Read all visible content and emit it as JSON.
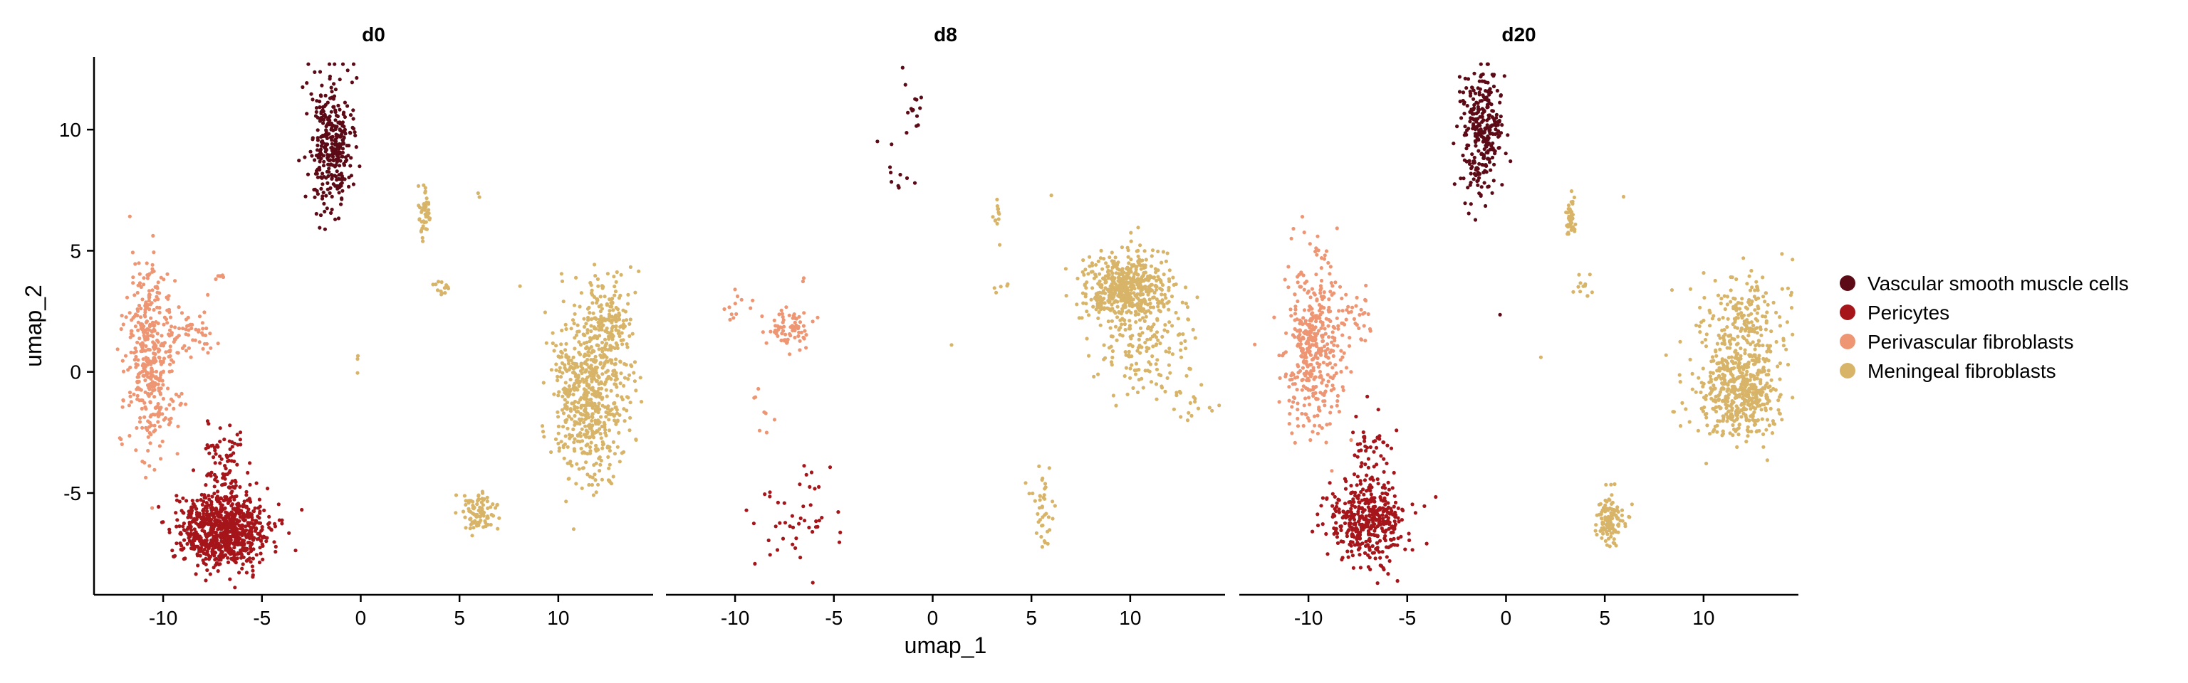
{
  "chart_data": {
    "type": "scatter",
    "xlabel": "umap_1",
    "ylabel": "umap_2",
    "xlim": [
      -13.5,
      14.8
    ],
    "ylim": [
      -9.2,
      13.0
    ],
    "xticks": [
      -10,
      -5,
      0,
      5,
      10
    ],
    "yticks": [
      -5,
      0,
      5,
      10
    ],
    "grid": false,
    "legend_position": "right",
    "series": [
      {
        "name": "Vascular smooth muscle cells",
        "color": "#5C0A16"
      },
      {
        "name": "Pericytes",
        "color": "#A5151A"
      },
      {
        "name": "Perivascular fibroblasts",
        "color": "#EE9673"
      },
      {
        "name": "Meningeal fibroblasts",
        "color": "#D8B468"
      }
    ],
    "panels": [
      {
        "title": "d0",
        "clusters": [
          {
            "series": 0,
            "n": 340,
            "cx": -1.4,
            "cy": 9.3,
            "sx": 0.55,
            "sy": 1.35
          },
          {
            "series": 2,
            "n": 420,
            "cx": -10.6,
            "cy": 0.6,
            "sx": 0.65,
            "sy": 1.9
          },
          {
            "series": 2,
            "n": 40,
            "cx": -8.4,
            "cy": 1.5,
            "sx": 0.5,
            "sy": 0.6
          },
          {
            "series": 2,
            "n": 6,
            "cx": -7.1,
            "cy": 3.9,
            "sx": 0.2,
            "sy": 0.1
          },
          {
            "series": 1,
            "n": 820,
            "cx": -7.0,
            "cy": -6.6,
            "sx": 1.1,
            "sy": 0.75
          },
          {
            "series": 1,
            "n": 90,
            "cx": -6.8,
            "cy": -3.9,
            "sx": 0.6,
            "sy": 0.8
          },
          {
            "series": 3,
            "n": 45,
            "cx": 3.2,
            "cy": 6.6,
            "sx": 0.15,
            "sy": 0.5
          },
          {
            "series": 3,
            "n": 14,
            "cx": 4.1,
            "cy": 3.4,
            "sx": 0.4,
            "sy": 0.2
          },
          {
            "series": 3,
            "n": 2,
            "cx": 5.9,
            "cy": 7.3,
            "sx": 0.1,
            "sy": 0.1
          },
          {
            "series": 3,
            "n": 3,
            "cx": 0.1,
            "cy": 0.4,
            "sx": 0.3,
            "sy": 0.4
          },
          {
            "series": 3,
            "n": 620,
            "cx": 11.6,
            "cy": -0.8,
            "sx": 1.0,
            "sy": 1.7
          },
          {
            "series": 3,
            "n": 140,
            "cx": 12.6,
            "cy": 2.2,
            "sx": 0.6,
            "sy": 0.9
          },
          {
            "series": 3,
            "n": 90,
            "cx": 6.0,
            "cy": -5.8,
            "sx": 0.45,
            "sy": 0.4
          }
        ]
      },
      {
        "title": "d8",
        "clusters": [
          {
            "series": 0,
            "n": 14,
            "cx": -1.0,
            "cy": 11.0,
            "sx": 0.25,
            "sy": 0.6
          },
          {
            "series": 0,
            "n": 10,
            "cx": -1.6,
            "cy": 8.0,
            "sx": 0.3,
            "sy": 0.6
          },
          {
            "series": 0,
            "n": 1,
            "cx": -2.8,
            "cy": 9.5,
            "sx": 0.05,
            "sy": 0.05
          },
          {
            "series": 2,
            "n": 70,
            "cx": -7.2,
            "cy": 1.7,
            "sx": 0.5,
            "sy": 0.4
          },
          {
            "series": 2,
            "n": 14,
            "cx": -9.2,
            "cy": 2.6,
            "sx": 0.6,
            "sy": 0.5
          },
          {
            "series": 2,
            "n": 8,
            "cx": -9.0,
            "cy": -1.5,
            "sx": 0.5,
            "sy": 1.0
          },
          {
            "series": 2,
            "n": 2,
            "cx": -6.6,
            "cy": 3.9,
            "sx": 0.4,
            "sy": 0.1
          },
          {
            "series": 1,
            "n": 40,
            "cx": -7.0,
            "cy": -6.3,
            "sx": 1.0,
            "sy": 0.8
          },
          {
            "series": 1,
            "n": 6,
            "cx": -6.0,
            "cy": -4.2,
            "sx": 0.4,
            "sy": 0.5
          },
          {
            "series": 3,
            "n": 12,
            "cx": 3.3,
            "cy": 6.5,
            "sx": 0.1,
            "sy": 0.5
          },
          {
            "series": 3,
            "n": 5,
            "cx": 3.6,
            "cy": 3.5,
            "sx": 0.3,
            "sy": 0.2
          },
          {
            "series": 3,
            "n": 1,
            "cx": 6.0,
            "cy": 7.3,
            "sx": 0.05,
            "sy": 0.05
          },
          {
            "series": 3,
            "n": 1,
            "cx": 0.9,
            "cy": 1.1,
            "sx": 0.05,
            "sy": 0.05
          },
          {
            "series": 3,
            "n": 520,
            "cx": 9.8,
            "cy": 3.5,
            "sx": 1.0,
            "sy": 0.7
          },
          {
            "series": 3,
            "n": 160,
            "cx": 10.8,
            "cy": 1.0,
            "sx": 1.3,
            "sy": 1.0
          },
          {
            "series": 3,
            "n": 18,
            "cx": 13.0,
            "cy": -1.3,
            "sx": 0.6,
            "sy": 0.4
          },
          {
            "series": 3,
            "n": 40,
            "cx": 5.5,
            "cy": -5.7,
            "sx": 0.35,
            "sy": 0.9
          }
        ]
      },
      {
        "title": "d20",
        "clusters": [
          {
            "series": 0,
            "n": 300,
            "cx": -1.2,
            "cy": 9.8,
            "sx": 0.55,
            "sy": 1.25
          },
          {
            "series": 0,
            "n": 1,
            "cx": -0.3,
            "cy": 2.4,
            "sx": 0.05,
            "sy": 0.05
          },
          {
            "series": 2,
            "n": 400,
            "cx": -9.8,
            "cy": 1.0,
            "sx": 0.7,
            "sy": 1.7
          },
          {
            "series": 2,
            "n": 40,
            "cx": -7.8,
            "cy": 2.2,
            "sx": 0.5,
            "sy": 0.6
          },
          {
            "series": 1,
            "n": 420,
            "cx": -7.0,
            "cy": -6.2,
            "sx": 1.0,
            "sy": 0.8
          },
          {
            "series": 1,
            "n": 50,
            "cx": -6.8,
            "cy": -3.6,
            "sx": 0.5,
            "sy": 0.8
          },
          {
            "series": 3,
            "n": 40,
            "cx": 3.3,
            "cy": 6.4,
            "sx": 0.1,
            "sy": 0.5
          },
          {
            "series": 3,
            "n": 12,
            "cx": 3.8,
            "cy": 3.5,
            "sx": 0.4,
            "sy": 0.2
          },
          {
            "series": 3,
            "n": 1,
            "cx": 6.0,
            "cy": 7.2,
            "sx": 0.05,
            "sy": 0.05
          },
          {
            "series": 3,
            "n": 1,
            "cx": 1.7,
            "cy": 0.6,
            "sx": 0.05,
            "sy": 0.05
          },
          {
            "series": 3,
            "n": 500,
            "cx": 11.8,
            "cy": -0.9,
            "sx": 1.0,
            "sy": 1.0
          },
          {
            "series": 3,
            "n": 200,
            "cx": 12.0,
            "cy": 2.2,
            "sx": 1.1,
            "sy": 1.0
          },
          {
            "series": 3,
            "n": 110,
            "cx": 5.3,
            "cy": -6.1,
            "sx": 0.4,
            "sy": 0.5
          }
        ]
      }
    ]
  }
}
